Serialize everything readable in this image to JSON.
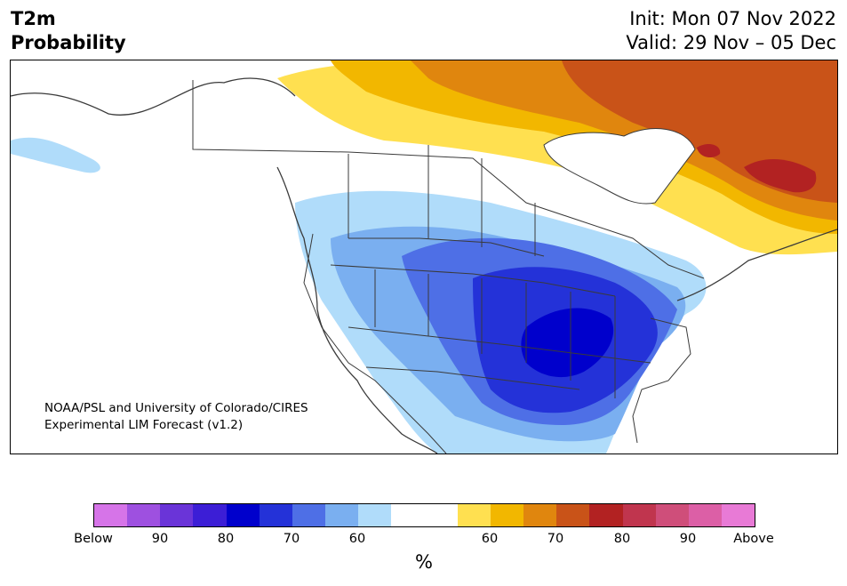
{
  "header": {
    "title_line1": "T2m",
    "title_line2": "Probability",
    "init": "Init: Mon 07 Nov 2022",
    "valid": "Valid: 29 Nov – 05 Dec"
  },
  "map": {
    "credit_line1": "NOAA/PSL and University of Colorado/CIRES",
    "credit_line2": "Experimental LIM Forecast (v1.2)",
    "land_color": "#ffffff",
    "border_color": "#3a3a3a"
  },
  "colorbar": {
    "unit": "%",
    "colors": [
      "#d674e8",
      "#9e50e0",
      "#6a34d8",
      "#3c1ed6",
      "#0000cc",
      "#2432d8",
      "#4e6fe6",
      "#7aaff0",
      "#b0dcfa",
      "#ffffff",
      "#ffffff",
      "#ffe050",
      "#f2b700",
      "#e0860e",
      "#c95318",
      "#b22222",
      "#c0354e",
      "#cf4e7a",
      "#dc5fa6",
      "#e87ad6"
    ],
    "tick_labels": [
      "Below",
      "90",
      "80",
      "70",
      "60",
      "60",
      "70",
      "80",
      "90",
      "Above"
    ]
  }
}
